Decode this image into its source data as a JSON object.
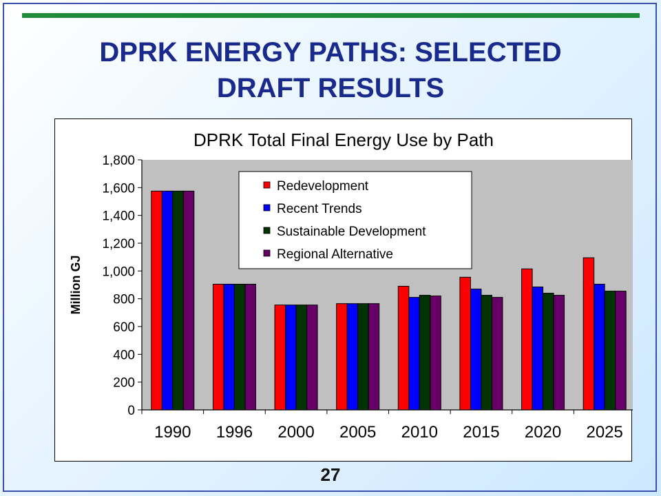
{
  "slide": {
    "title_line1": "DPRK ENERGY PATHS: SELECTED",
    "title_line2": "DRAFT RESULTS",
    "page_number": "27",
    "accent_color": "#1e8a3a",
    "title_color": "#1a2a8c"
  },
  "chart_data": {
    "type": "bar",
    "title": "DPRK Total Final Energy Use by Path",
    "xlabel": "",
    "ylabel": "Million GJ",
    "ylim": [
      0,
      1800
    ],
    "yticks": [
      0,
      200,
      400,
      600,
      800,
      1000,
      1200,
      1400,
      1600,
      1800
    ],
    "ytick_labels": [
      "0",
      "200",
      "400",
      "600",
      "800",
      "1,000",
      "1,200",
      "1,400",
      "1,600",
      "1,800"
    ],
    "categories": [
      "1990",
      "1996",
      "2000",
      "2005",
      "2010",
      "2015",
      "2020",
      "2025"
    ],
    "grid": false,
    "plot_background": "#c0c0c0",
    "legend_position": "top-center",
    "series": [
      {
        "name": "Redevelopment",
        "color": "#ff0000",
        "values": [
          1575,
          905,
          755,
          765,
          890,
          955,
          1015,
          1095
        ]
      },
      {
        "name": "Recent Trends",
        "color": "#0000ff",
        "values": [
          1575,
          905,
          755,
          765,
          810,
          870,
          885,
          905
        ]
      },
      {
        "name": "Sustainable Development",
        "color": "#003300",
        "values": [
          1575,
          905,
          755,
          765,
          825,
          825,
          840,
          855
        ]
      },
      {
        "name": "Regional Alternative",
        "color": "#660066",
        "values": [
          1575,
          905,
          755,
          765,
          820,
          810,
          825,
          855
        ]
      }
    ]
  }
}
